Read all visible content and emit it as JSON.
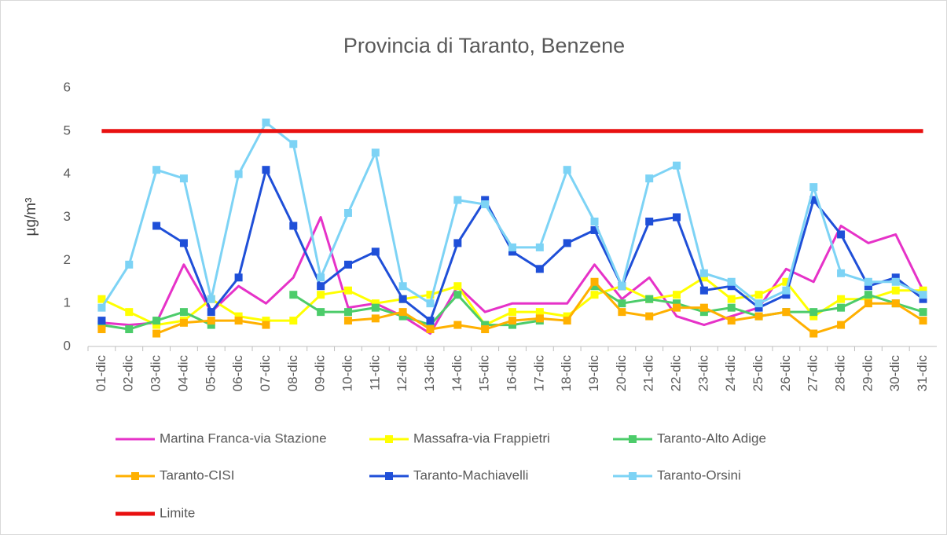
{
  "chart_data": {
    "type": "line",
    "title": "Provincia di Taranto, Benzene",
    "y_label": "µg/m³",
    "categories": [
      "01-dic",
      "02-dic",
      "03-dic",
      "04-dic",
      "05-dic",
      "06-dic",
      "07-dic",
      "08-dic",
      "09-dic",
      "10-dic",
      "11-dic",
      "12-dic",
      "13-dic",
      "14-dic",
      "15-dic",
      "16-dic",
      "17-dic",
      "18-dic",
      "19-dic",
      "20-dic",
      "21-dic",
      "22-dic",
      "23-dic",
      "24-dic",
      "25-dic",
      "26-dic",
      "27-dic",
      "28-dic",
      "29-dic",
      "30-dic",
      "31-dic"
    ],
    "ylim": [
      0,
      6
    ],
    "yticks": [
      0,
      1,
      2,
      3,
      4,
      5,
      6
    ],
    "grid": false,
    "legend": "bottom",
    "series": [
      {
        "name": "Martina Franca-via Stazione",
        "color": "#e632c8",
        "marker": "none",
        "values": [
          0.55,
          0.5,
          0.55,
          1.9,
          0.8,
          1.4,
          1.0,
          1.6,
          3.0,
          0.9,
          1.0,
          0.7,
          0.3,
          1.4,
          0.8,
          1.0,
          1.0,
          1.0,
          1.9,
          1.1,
          1.6,
          0.7,
          0.5,
          0.7,
          0.9,
          1.8,
          1.5,
          2.8,
          2.4,
          2.6,
          1.3
        ]
      },
      {
        "name": "Massafra-via Frappietri",
        "color": "#ffff00",
        "marker": "square",
        "values": [
          1.1,
          0.8,
          0.5,
          0.6,
          1.1,
          0.7,
          0.6,
          0.6,
          1.2,
          1.3,
          1.0,
          1.1,
          1.2,
          1.4,
          0.5,
          0.8,
          0.8,
          0.7,
          1.2,
          1.4,
          1.1,
          1.2,
          1.6,
          1.1,
          1.2,
          1.5,
          0.7,
          1.1,
          1.1,
          1.3,
          1.3
        ]
      },
      {
        "name": "Taranto-Alto Adige",
        "color": "#4ccc6a",
        "marker": "square",
        "values": [
          0.5,
          0.4,
          0.6,
          0.8,
          0.5,
          null,
          null,
          1.2,
          0.8,
          0.8,
          0.9,
          0.7,
          0.5,
          1.2,
          0.5,
          0.5,
          0.6,
          null,
          1.4,
          1.0,
          1.1,
          1.0,
          0.8,
          0.9,
          0.7,
          0.8,
          0.8,
          0.9,
          1.2,
          1.0,
          0.8
        ]
      },
      {
        "name": "Taranto-CISI",
        "color": "#ffb000",
        "marker": "square",
        "values": [
          0.4,
          null,
          0.3,
          0.55,
          0.6,
          0.6,
          0.5,
          null,
          null,
          0.6,
          0.65,
          0.8,
          0.4,
          0.5,
          0.4,
          0.6,
          0.65,
          0.6,
          1.5,
          0.8,
          0.7,
          0.9,
          0.9,
          0.6,
          0.7,
          0.8,
          0.3,
          0.5,
          1.0,
          1.0,
          0.6
        ]
      },
      {
        "name": "Taranto-Machiavelli",
        "color": "#1f4fd8",
        "marker": "square",
        "values": [
          0.6,
          null,
          2.8,
          2.4,
          0.8,
          1.6,
          4.1,
          2.8,
          1.4,
          1.9,
          2.2,
          1.1,
          0.6,
          2.4,
          3.4,
          2.2,
          1.8,
          2.4,
          2.7,
          1.4,
          2.9,
          3.0,
          1.3,
          1.4,
          0.9,
          1.2,
          3.4,
          2.6,
          1.4,
          1.6,
          1.1
        ]
      },
      {
        "name": "Taranto-Orsini",
        "color": "#7dd3f5",
        "marker": "square",
        "values": [
          0.9,
          1.9,
          4.1,
          3.9,
          1.1,
          4.0,
          5.2,
          4.7,
          1.6,
          3.1,
          4.5,
          1.4,
          1.0,
          3.4,
          3.3,
          2.3,
          2.3,
          4.1,
          2.9,
          1.4,
          3.9,
          4.2,
          1.7,
          1.5,
          1.0,
          1.3,
          3.7,
          1.7,
          1.5,
          1.5,
          1.2
        ]
      },
      {
        "name": "Limite",
        "color": "#e81010",
        "marker": "none",
        "values": [
          5,
          5,
          5,
          5,
          5,
          5,
          5,
          5,
          5,
          5,
          5,
          5,
          5,
          5,
          5,
          5,
          5,
          5,
          5,
          5,
          5,
          5,
          5,
          5,
          5,
          5,
          5,
          5,
          5,
          5,
          5
        ]
      }
    ]
  }
}
